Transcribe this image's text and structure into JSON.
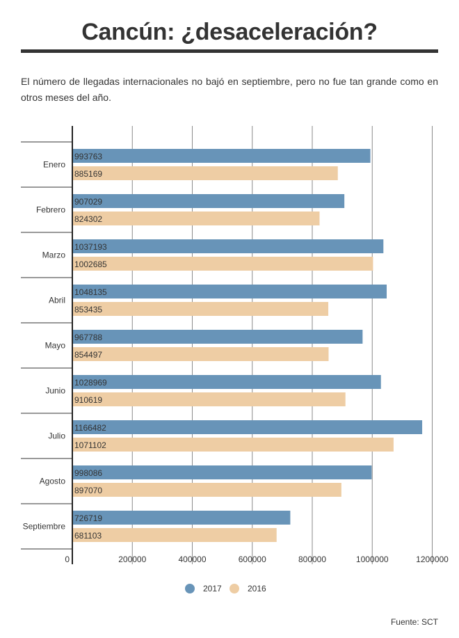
{
  "header": {
    "title": "Cancún: ¿desaceleración?",
    "subtitle": "El número de llegadas internacionales no bajó en septiembre, pero no fue tan grande como en otros meses del año."
  },
  "chart_data": {
    "type": "bar",
    "orientation": "horizontal",
    "categories": [
      "Enero",
      "Febrero",
      "Marzo",
      "Abril",
      "Mayo",
      "Junio",
      "Julio",
      "Agosto",
      "Septiembre"
    ],
    "series": [
      {
        "name": "2017",
        "color": "#6894b8",
        "values": [
          993763,
          907029,
          1037193,
          1048135,
          967788,
          1028969,
          1166482,
          998086,
          726719
        ],
        "labels": [
          "993763",
          "907029",
          "1037193",
          "1048135",
          "967788",
          "1028969",
          "1166482",
          "998086",
          "726719"
        ]
      },
      {
        "name": "2016",
        "color": "#eecda4",
        "values": [
          885169,
          824302,
          1002685,
          853435,
          854497,
          910619,
          1071102,
          897070,
          681103
        ],
        "labels": [
          "885169",
          "824302",
          "1002685",
          "853435",
          "854497",
          "910619",
          "1071102",
          "897070",
          "681103"
        ]
      }
    ],
    "xlim": [
      0,
      1200000
    ],
    "xticks": [
      0,
      200000,
      400000,
      600000,
      800000,
      1000000,
      1200000
    ],
    "xtick_labels": [
      "0",
      "200000",
      "400000",
      "600000",
      "800000",
      "1000000",
      "1200000"
    ],
    "grid": true,
    "legend_position": "bottom-center"
  },
  "footer": {
    "source": "Fuente: SCT"
  }
}
